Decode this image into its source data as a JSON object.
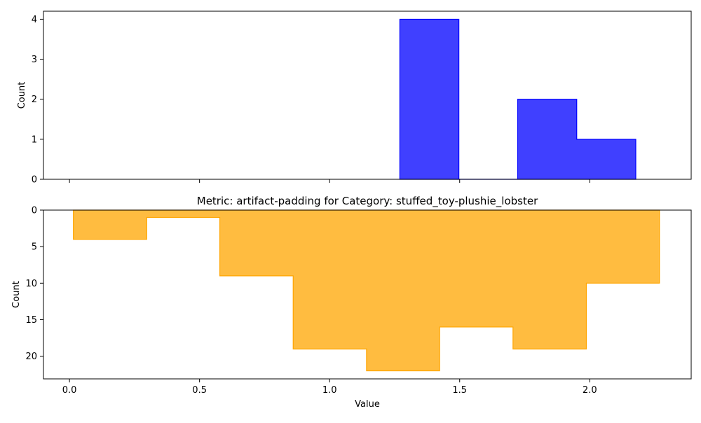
{
  "chart_data": [
    {
      "type": "histogram",
      "title": "",
      "xlabel": "",
      "ylabel": "Count",
      "color": "#0000ff",
      "edge_color": "#0000ff",
      "y_inverted": false,
      "xlim": [
        -0.1,
        2.39
      ],
      "ylim": [
        0,
        4.2
      ],
      "x_ticks": [
        0.0,
        0.5,
        1.0,
        1.5,
        2.0
      ],
      "x_tick_labels_shown": false,
      "y_ticks": [
        0,
        1,
        2,
        3,
        4
      ],
      "y_tick_labels": [
        "0",
        "1",
        "2",
        "3",
        "4"
      ],
      "bins": [
        {
          "x0": 1.27,
          "x1": 1.497,
          "count": 4
        },
        {
          "x0": 1.497,
          "x1": 1.723,
          "count": 0
        },
        {
          "x0": 1.723,
          "x1": 1.95,
          "count": 2
        },
        {
          "x0": 1.95,
          "x1": 2.177,
          "count": 1
        }
      ]
    },
    {
      "type": "histogram",
      "title": "Metric: artifact-padding for Category: stuffed_toy-plushie_lobster",
      "xlabel": "Value",
      "ylabel": "Count",
      "color": "#ffa500",
      "edge_color": "#ffa500",
      "y_inverted": true,
      "xlim": [
        -0.1,
        2.39
      ],
      "ylim": [
        0,
        23.1
      ],
      "x_ticks": [
        0.0,
        0.5,
        1.0,
        1.5,
        2.0
      ],
      "x_tick_labels": [
        "0.0",
        "0.5",
        "1.0",
        "1.5",
        "2.0"
      ],
      "x_tick_labels_shown": true,
      "y_ticks": [
        0,
        5,
        10,
        15,
        20
      ],
      "y_tick_labels": [
        "0",
        "5",
        "10",
        "15",
        "20"
      ],
      "bins": [
        {
          "x0": 0.015,
          "x1": 0.297,
          "count": 4
        },
        {
          "x0": 0.297,
          "x1": 0.578,
          "count": 1
        },
        {
          "x0": 0.578,
          "x1": 0.86,
          "count": 9
        },
        {
          "x0": 0.86,
          "x1": 1.142,
          "count": 19
        },
        {
          "x0": 1.142,
          "x1": 1.423,
          "count": 22
        },
        {
          "x0": 1.423,
          "x1": 1.705,
          "count": 16
        },
        {
          "x0": 1.705,
          "x1": 1.987,
          "count": 19
        },
        {
          "x0": 1.987,
          "x1": 2.268,
          "count": 10
        }
      ]
    }
  ]
}
